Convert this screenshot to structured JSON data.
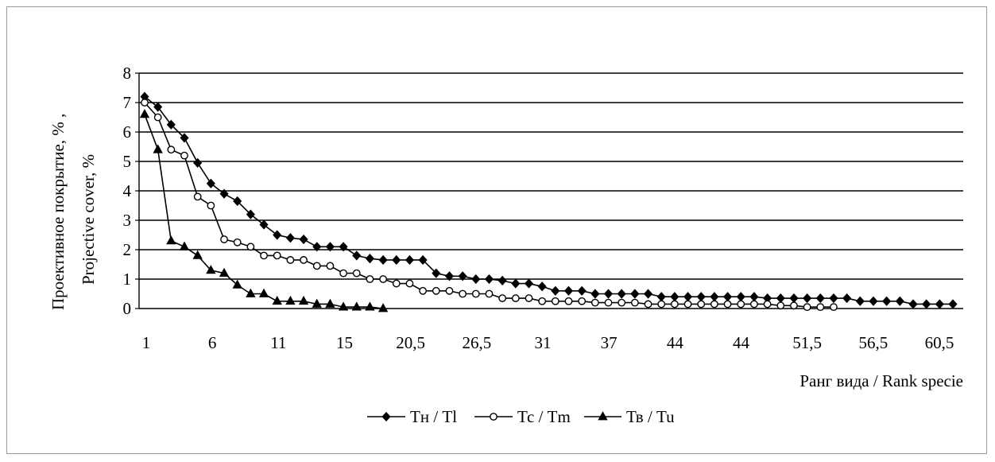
{
  "chart_data": {
    "type": "line",
    "title": "",
    "ylabel_line1": "Проективное покрытие, % ,",
    "ylabel_line2": "Projective cover, %",
    "xlabel": "Ранг вида / Rank specie",
    "ylim": [
      0,
      8
    ],
    "yticks": [
      "0",
      "1",
      "2",
      "3",
      "4",
      "5",
      "6",
      "7",
      "8"
    ],
    "xtick_labels": [
      "1",
      "6",
      "11",
      "15",
      "20,5",
      "26,5",
      "31",
      "37",
      "44",
      "44",
      "51,5",
      "56,5",
      "60,5"
    ],
    "grid": "horizontal",
    "legend_position": "bottom",
    "series": [
      {
        "name": "Тн / Tl",
        "marker": "diamond",
        "values": [
          7.2,
          6.85,
          6.25,
          5.8,
          4.95,
          4.25,
          3.9,
          3.65,
          3.2,
          2.85,
          2.5,
          2.4,
          2.35,
          2.1,
          2.1,
          2.1,
          1.8,
          1.7,
          1.65,
          1.65,
          1.65,
          1.65,
          1.2,
          1.1,
          1.1,
          1.0,
          1.0,
          0.95,
          0.85,
          0.85,
          0.75,
          0.6,
          0.6,
          0.6,
          0.5,
          0.5,
          0.5,
          0.5,
          0.5,
          0.4,
          0.4,
          0.4,
          0.4,
          0.4,
          0.4,
          0.4,
          0.4,
          0.35,
          0.35,
          0.35,
          0.35,
          0.35,
          0.35,
          0.35,
          0.25,
          0.25,
          0.25,
          0.25,
          0.15,
          0.15,
          0.15,
          0.15
        ]
      },
      {
        "name": "Тс / Tm",
        "marker": "circle",
        "values": [
          7.0,
          6.5,
          5.4,
          5.2,
          3.8,
          3.5,
          2.35,
          2.25,
          2.1,
          1.8,
          1.8,
          1.65,
          1.65,
          1.45,
          1.45,
          1.2,
          1.2,
          1.0,
          1.0,
          0.85,
          0.85,
          0.6,
          0.6,
          0.6,
          0.5,
          0.5,
          0.5,
          0.35,
          0.35,
          0.35,
          0.25,
          0.25,
          0.25,
          0.25,
          0.2,
          0.2,
          0.2,
          0.2,
          0.15,
          0.15,
          0.15,
          0.15,
          0.15,
          0.15,
          0.15,
          0.15,
          0.15,
          0.15,
          0.1,
          0.1,
          0.05,
          0.05,
          0.05
        ]
      },
      {
        "name": "Тв / Tu",
        "marker": "triangle",
        "values": [
          6.6,
          5.4,
          2.3,
          2.1,
          1.8,
          1.3,
          1.2,
          0.8,
          0.5,
          0.5,
          0.25,
          0.25,
          0.25,
          0.15,
          0.15,
          0.05,
          0.05,
          0.05,
          0.0
        ]
      }
    ]
  }
}
